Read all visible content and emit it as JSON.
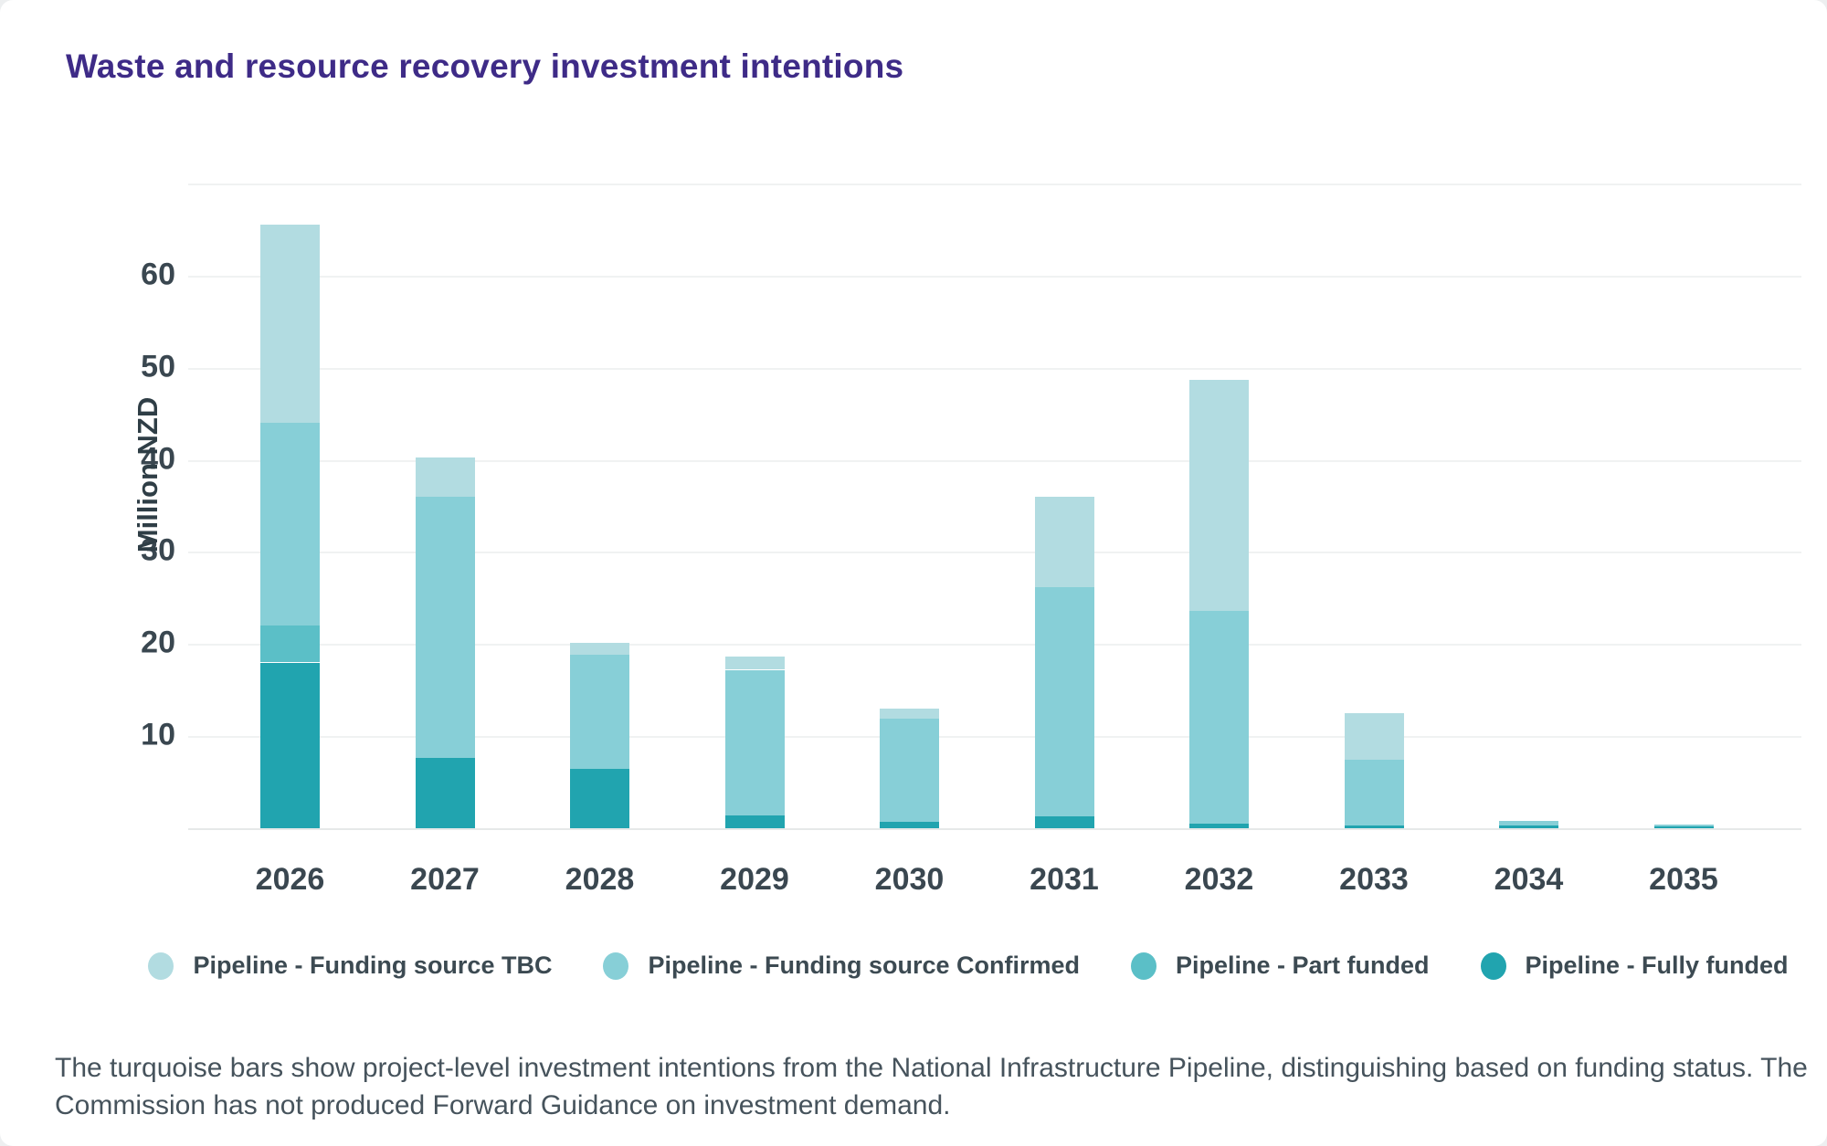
{
  "title": "Waste and resource recovery investment intentions",
  "chart_data": {
    "type": "bar",
    "stacked": true,
    "title": "Waste and resource recovery investment intentions",
    "xlabel": "",
    "ylabel": "Million NZD",
    "ylim": [
      0,
      70
    ],
    "ytick_step": 10,
    "ytick_labels": [
      "10",
      "20",
      "30",
      "40",
      "50",
      "60"
    ],
    "grid": true,
    "legend_position": "bottom",
    "units": "Million NZD",
    "categories": [
      "2026",
      "2027",
      "2028",
      "2029",
      "2030",
      "2031",
      "2032",
      "2033",
      "2034",
      "2035"
    ],
    "series": [
      {
        "key": "fully",
        "name": "Pipeline - Fully funded",
        "color": "#21A4AF",
        "values": [
          18.0,
          7.6,
          6.4,
          1.4,
          0.7,
          1.3,
          0.5,
          0.3,
          0.3,
          0.2
        ]
      },
      {
        "key": "part",
        "name": "Pipeline - Part funded",
        "color": "#5BBFC7",
        "values": [
          4.0,
          0,
          0,
          0,
          0,
          0,
          0,
          0,
          0,
          0
        ]
      },
      {
        "key": "confirmed",
        "name": "Pipeline - Funding source Confirmed",
        "color": "#87CFD7",
        "values": [
          22.0,
          28.4,
          12.4,
          15.8,
          11.2,
          24.9,
          23.1,
          7.1,
          0.5,
          0.2
        ]
      },
      {
        "key": "tbc",
        "name": "Pipeline - Funding source TBC",
        "color": "#B2DCE1",
        "values": [
          21.5,
          4.3,
          1.3,
          1.4,
          1.1,
          9.8,
          25.1,
          5.1,
          0,
          0
        ]
      }
    ],
    "totals": [
      65.5,
      40.3,
      20.1,
      18.6,
      13.0,
      36.0,
      48.7,
      12.5,
      0.8,
      0.4
    ]
  },
  "legend": {
    "items": [
      {
        "label": "Pipeline - Funding source TBC",
        "color": "#B2DCE1"
      },
      {
        "label": "Pipeline - Funding source Confirmed",
        "color": "#87CFD7"
      },
      {
        "label": "Pipeline - Part funded",
        "color": "#5BBFC7"
      },
      {
        "label": "Pipeline - Fully funded",
        "color": "#21A4AF"
      }
    ]
  },
  "footnote": {
    "line1": "The turquoise bars show project-level investment intentions from the National Infrastructure Pipeline, distinguishing based on funding status. The",
    "line2": "Commission has not produced Forward Guidance on investment demand."
  }
}
